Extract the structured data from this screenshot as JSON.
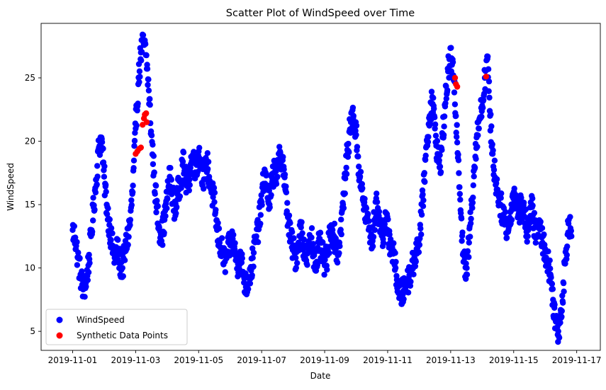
{
  "chart_data": {
    "type": "scatter",
    "title": "Scatter Plot of WindSpeed over Time",
    "xlabel": "Date",
    "ylabel": "WindSpeed",
    "xlim": [
      "2019-10-31T00:00",
      "2019-11-17T18:00"
    ],
    "ylim": [
      3.5,
      29.3
    ],
    "x_ticks": [
      "2019-11-01",
      "2019-11-03",
      "2019-11-05",
      "2019-11-07",
      "2019-11-09",
      "2019-11-11",
      "2019-11-13",
      "2019-11-15",
      "2019-11-17"
    ],
    "y_ticks": [
      5,
      10,
      15,
      20,
      25
    ],
    "grid": false,
    "legend_position": "lower-left",
    "series": [
      {
        "name": "WindSpeed",
        "color": "#0000ff",
        "marker": "circle",
        "points": [
          [
            "2019-11-01T00:00",
            13.0
          ],
          [
            "2019-11-01T02:00",
            12.4
          ],
          [
            "2019-11-01T04:00",
            10.8
          ],
          [
            "2019-11-01T06:00",
            9.5
          ],
          [
            "2019-11-01T08:00",
            8.3
          ],
          [
            "2019-11-01T10:00",
            8.8
          ],
          [
            "2019-11-01T12:00",
            10.2
          ],
          [
            "2019-11-01T14:00",
            12.5
          ],
          [
            "2019-11-01T16:00",
            14.8
          ],
          [
            "2019-11-01T18:00",
            17.0
          ],
          [
            "2019-11-01T20:00",
            19.5
          ],
          [
            "2019-11-01T22:00",
            20.3
          ],
          [
            "2019-11-02T00:00",
            17.2
          ],
          [
            "2019-11-02T02:00",
            15.0
          ],
          [
            "2019-11-02T04:00",
            13.4
          ],
          [
            "2019-11-02T06:00",
            11.8
          ],
          [
            "2019-11-02T08:00",
            10.8
          ],
          [
            "2019-11-02T10:00",
            11.5
          ],
          [
            "2019-11-02T12:00",
            10.4
          ],
          [
            "2019-11-02T14:00",
            10.0
          ],
          [
            "2019-11-02T16:00",
            11.3
          ],
          [
            "2019-11-02T18:00",
            12.5
          ],
          [
            "2019-11-02T20:00",
            13.8
          ],
          [
            "2019-11-02T22:00",
            16.5
          ],
          [
            "2019-11-03T00:00",
            21.0
          ],
          [
            "2019-11-03T02:00",
            24.5
          ],
          [
            "2019-11-03T04:00",
            27.0
          ],
          [
            "2019-11-03T06:00",
            27.8
          ],
          [
            "2019-11-03T08:00",
            26.8
          ],
          [
            "2019-11-03T10:00",
            24.0
          ],
          [
            "2019-11-03T12:00",
            20.5
          ],
          [
            "2019-11-03T14:00",
            17.5
          ],
          [
            "2019-11-03T16:00",
            14.8
          ],
          [
            "2019-11-03T18:00",
            13.2
          ],
          [
            "2019-11-03T20:00",
            12.6
          ],
          [
            "2019-11-03T22:00",
            13.8
          ],
          [
            "2019-11-04T00:00",
            15.5
          ],
          [
            "2019-11-04T02:00",
            17.2
          ],
          [
            "2019-11-04T04:00",
            16.0
          ],
          [
            "2019-11-04T06:00",
            14.5
          ],
          [
            "2019-11-04T08:00",
            15.8
          ],
          [
            "2019-11-04T10:00",
            16.8
          ],
          [
            "2019-11-04T12:00",
            18.4
          ],
          [
            "2019-11-04T14:00",
            17.0
          ],
          [
            "2019-11-04T16:00",
            16.4
          ],
          [
            "2019-11-04T18:00",
            18.2
          ],
          [
            "2019-11-04T20:00",
            18.8
          ],
          [
            "2019-11-04T22:00",
            17.5
          ],
          [
            "2019-11-05T00:00",
            19.2
          ],
          [
            "2019-11-05T02:00",
            18.0
          ],
          [
            "2019-11-05T04:00",
            17.0
          ],
          [
            "2019-11-05T06:00",
            18.5
          ],
          [
            "2019-11-05T08:00",
            17.2
          ],
          [
            "2019-11-05T10:00",
            16.0
          ],
          [
            "2019-11-05T12:00",
            15.2
          ],
          [
            "2019-11-05T14:00",
            13.0
          ],
          [
            "2019-11-05T16:00",
            12.0
          ],
          [
            "2019-11-05T18:00",
            11.2
          ],
          [
            "2019-11-05T20:00",
            10.5
          ],
          [
            "2019-11-05T22:00",
            11.3
          ],
          [
            "2019-11-06T00:00",
            11.8
          ],
          [
            "2019-11-06T02:00",
            12.3
          ],
          [
            "2019-11-06T04:00",
            11.0
          ],
          [
            "2019-11-06T06:00",
            10.3
          ],
          [
            "2019-11-06T08:00",
            10.8
          ],
          [
            "2019-11-06T10:00",
            9.6
          ],
          [
            "2019-11-06T12:00",
            8.5
          ],
          [
            "2019-11-06T14:00",
            9.2
          ],
          [
            "2019-11-06T16:00",
            9.8
          ],
          [
            "2019-11-06T18:00",
            11.2
          ],
          [
            "2019-11-06T20:00",
            12.5
          ],
          [
            "2019-11-06T22:00",
            13.5
          ],
          [
            "2019-11-07T00:00",
            15.2
          ],
          [
            "2019-11-07T02:00",
            17.5
          ],
          [
            "2019-11-07T04:00",
            16.5
          ],
          [
            "2019-11-07T06:00",
            15.0
          ],
          [
            "2019-11-07T08:00",
            16.8
          ],
          [
            "2019-11-07T10:00",
            18.0
          ],
          [
            "2019-11-07T12:00",
            17.2
          ],
          [
            "2019-11-07T14:00",
            19.2
          ],
          [
            "2019-11-07T16:00",
            18.5
          ],
          [
            "2019-11-07T18:00",
            16.2
          ],
          [
            "2019-11-07T20:00",
            14.0
          ],
          [
            "2019-11-07T22:00",
            12.4
          ],
          [
            "2019-11-08T00:00",
            11.5
          ],
          [
            "2019-11-08T02:00",
            10.8
          ],
          [
            "2019-11-08T04:00",
            12.0
          ],
          [
            "2019-11-08T06:00",
            13.2
          ],
          [
            "2019-11-08T08:00",
            11.8
          ],
          [
            "2019-11-08T10:00",
            10.6
          ],
          [
            "2019-11-08T12:00",
            11.5
          ],
          [
            "2019-11-08T14:00",
            12.4
          ],
          [
            "2019-11-08T16:00",
            11.0
          ],
          [
            "2019-11-08T18:00",
            10.5
          ],
          [
            "2019-11-08T20:00",
            12.0
          ],
          [
            "2019-11-08T22:00",
            11.2
          ],
          [
            "2019-11-09T00:00",
            10.2
          ],
          [
            "2019-11-09T02:00",
            11.0
          ],
          [
            "2019-11-09T04:00",
            12.5
          ],
          [
            "2019-11-09T06:00",
            13.0
          ],
          [
            "2019-11-09T08:00",
            12.2
          ],
          [
            "2019-11-09T10:00",
            11.0
          ],
          [
            "2019-11-09T12:00",
            12.8
          ],
          [
            "2019-11-09T14:00",
            15.0
          ],
          [
            "2019-11-09T16:00",
            17.5
          ],
          [
            "2019-11-09T18:00",
            19.8
          ],
          [
            "2019-11-09T20:00",
            21.5
          ],
          [
            "2019-11-09T22:00",
            22.0
          ],
          [
            "2019-11-10T00:00",
            20.5
          ],
          [
            "2019-11-10T02:00",
            18.0
          ],
          [
            "2019-11-10T04:00",
            16.2
          ],
          [
            "2019-11-10T06:00",
            15.0
          ],
          [
            "2019-11-10T08:00",
            14.0
          ],
          [
            "2019-11-10T10:00",
            13.2
          ],
          [
            "2019-11-10T12:00",
            12.0
          ],
          [
            "2019-11-10T14:00",
            13.8
          ],
          [
            "2019-11-10T16:00",
            15.2
          ],
          [
            "2019-11-10T18:00",
            13.5
          ],
          [
            "2019-11-10T20:00",
            12.5
          ],
          [
            "2019-11-10T22:00",
            13.8
          ],
          [
            "2019-11-11T00:00",
            13.0
          ],
          [
            "2019-11-11T02:00",
            12.0
          ],
          [
            "2019-11-11T04:00",
            11.2
          ],
          [
            "2019-11-11T06:00",
            10.0
          ],
          [
            "2019-11-11T08:00",
            8.5
          ],
          [
            "2019-11-11T10:00",
            7.8
          ],
          [
            "2019-11-11T12:00",
            8.2
          ],
          [
            "2019-11-11T14:00",
            8.8
          ],
          [
            "2019-11-11T16:00",
            9.2
          ],
          [
            "2019-11-11T18:00",
            9.8
          ],
          [
            "2019-11-11T20:00",
            10.5
          ],
          [
            "2019-11-11T22:00",
            11.5
          ],
          [
            "2019-11-12T00:00",
            12.3
          ],
          [
            "2019-11-12T02:00",
            14.2
          ],
          [
            "2019-11-12T04:00",
            17.5
          ],
          [
            "2019-11-12T06:00",
            20.0
          ],
          [
            "2019-11-12T08:00",
            22.0
          ],
          [
            "2019-11-12T10:00",
            23.5
          ],
          [
            "2019-11-12T12:00",
            21.0
          ],
          [
            "2019-11-12T14:00",
            19.0
          ],
          [
            "2019-11-12T16:00",
            18.0
          ],
          [
            "2019-11-12T18:00",
            20.5
          ],
          [
            "2019-11-12T20:00",
            23.0
          ],
          [
            "2019-11-12T22:00",
            25.5
          ],
          [
            "2019-11-13T00:00",
            26.5
          ],
          [
            "2019-11-13T02:00",
            25.2
          ],
          [
            "2019-11-13T04:00",
            22.0
          ],
          [
            "2019-11-13T06:00",
            18.5
          ],
          [
            "2019-11-13T08:00",
            14.0
          ],
          [
            "2019-11-13T10:00",
            10.5
          ],
          [
            "2019-11-13T12:00",
            9.5
          ],
          [
            "2019-11-13T14:00",
            12.0
          ],
          [
            "2019-11-13T16:00",
            15.0
          ],
          [
            "2019-11-13T18:00",
            18.0
          ],
          [
            "2019-11-13T20:00",
            20.5
          ],
          [
            "2019-11-13T22:00",
            21.8
          ],
          [
            "2019-11-14T00:00",
            22.8
          ],
          [
            "2019-11-14T02:00",
            25.0
          ],
          [
            "2019-11-14T04:00",
            26.5
          ],
          [
            "2019-11-14T06:00",
            22.0
          ],
          [
            "2019-11-14T08:00",
            19.0
          ],
          [
            "2019-11-14T10:00",
            17.0
          ],
          [
            "2019-11-14T12:00",
            16.0
          ],
          [
            "2019-11-14T14:00",
            15.0
          ],
          [
            "2019-11-14T16:00",
            14.2
          ],
          [
            "2019-11-14T18:00",
            13.5
          ],
          [
            "2019-11-14T20:00",
            13.0
          ],
          [
            "2019-11-14T22:00",
            14.5
          ],
          [
            "2019-11-15T00:00",
            16.0
          ],
          [
            "2019-11-15T02:00",
            15.2
          ],
          [
            "2019-11-15T04:00",
            14.5
          ],
          [
            "2019-11-15T06:00",
            15.0
          ],
          [
            "2019-11-15T08:00",
            14.5
          ],
          [
            "2019-11-15T10:00",
            13.0
          ],
          [
            "2019-11-15T12:00",
            13.8
          ],
          [
            "2019-11-15T14:00",
            14.8
          ],
          [
            "2019-11-15T16:00",
            13.2
          ],
          [
            "2019-11-15T18:00",
            12.5
          ],
          [
            "2019-11-15T20:00",
            13.5
          ],
          [
            "2019-11-15T22:00",
            12.0
          ],
          [
            "2019-11-16T00:00",
            11.5
          ],
          [
            "2019-11-16T02:00",
            10.5
          ],
          [
            "2019-11-16T04:00",
            9.5
          ],
          [
            "2019-11-16T06:00",
            7.5
          ],
          [
            "2019-11-16T08:00",
            5.8
          ],
          [
            "2019-11-16T10:00",
            5.0
          ],
          [
            "2019-11-16T12:00",
            6.5
          ],
          [
            "2019-11-16T14:00",
            8.8
          ],
          [
            "2019-11-16T16:00",
            11.5
          ],
          [
            "2019-11-16T18:00",
            13.8
          ],
          [
            "2019-11-16T20:00",
            12.5
          ]
        ]
      },
      {
        "name": "Synthetic Data Points",
        "color": "#ff0000",
        "marker": "circle",
        "points": [
          [
            "2019-11-03T00:00",
            19.0
          ],
          [
            "2019-11-03T01:20",
            19.2
          ],
          [
            "2019-11-03T02:40",
            19.4
          ],
          [
            "2019-11-03T04:00",
            19.5
          ],
          [
            "2019-11-03T05:20",
            21.3
          ],
          [
            "2019-11-03T06:20",
            21.8
          ],
          [
            "2019-11-03T07:00",
            22.1
          ],
          [
            "2019-11-03T08:00",
            22.2
          ],
          [
            "2019-11-03T08:30",
            21.5
          ],
          [
            "2019-11-13T03:20",
            25.0
          ],
          [
            "2019-11-13T04:00",
            24.5
          ],
          [
            "2019-11-13T05:00",
            24.3
          ],
          [
            "2019-11-14T03:00",
            25.1
          ]
        ]
      }
    ]
  }
}
